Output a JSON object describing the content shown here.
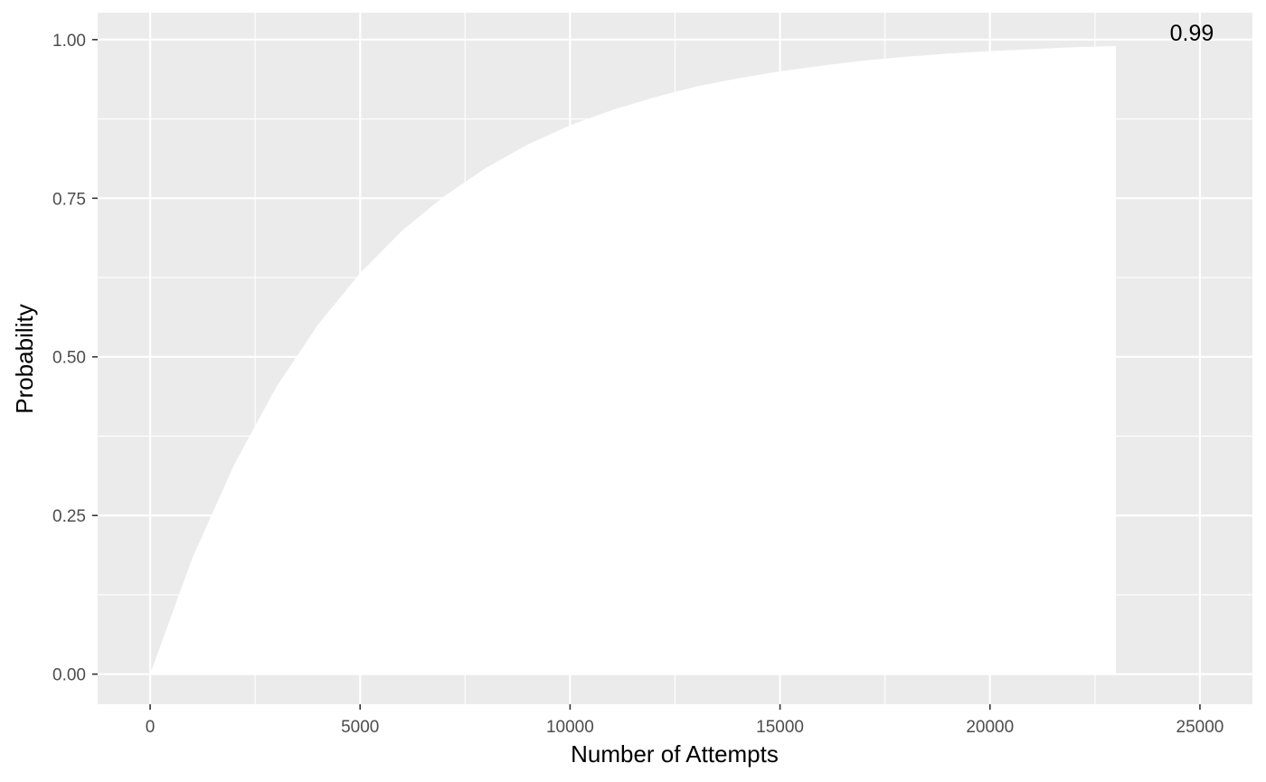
{
  "chart_data": {
    "type": "area",
    "title": "",
    "xlabel": "Number of Attempts",
    "ylabel": "Probability",
    "xlim": [
      -1250,
      26250
    ],
    "ylim": [
      -0.0475,
      1.0425
    ],
    "x_ticks": [
      0,
      5000,
      10000,
      15000,
      20000,
      25000
    ],
    "x_tick_labels": [
      "0",
      "5000",
      "10000",
      "15000",
      "20000",
      "25000"
    ],
    "y_ticks": [
      0,
      0.25,
      0.5,
      0.75,
      1
    ],
    "y_tick_labels": [
      "0.00",
      "0.25",
      "0.50",
      "0.75",
      "1.00"
    ],
    "grid": true,
    "panel_background": "#ebebeb",
    "fill_color": "#ffffff",
    "series": [
      {
        "x": [
          0,
          1000,
          2000,
          3000,
          4000,
          5000,
          6000,
          7000,
          8000,
          9000,
          10000,
          11000,
          12000,
          13000,
          14000,
          15000,
          16000,
          17000,
          18000,
          19000,
          20000,
          21000,
          22000,
          23000
        ],
        "values": [
          0.0,
          0.182,
          0.33,
          0.452,
          0.551,
          0.632,
          0.699,
          0.753,
          0.798,
          0.835,
          0.865,
          0.889,
          0.909,
          0.926,
          0.939,
          0.95,
          0.959,
          0.967,
          0.973,
          0.978,
          0.982,
          0.985,
          0.988,
          0.99
        ]
      }
    ],
    "annotations": [
      {
        "x": 25000,
        "y": 0.99,
        "text": "0.99"
      }
    ]
  }
}
